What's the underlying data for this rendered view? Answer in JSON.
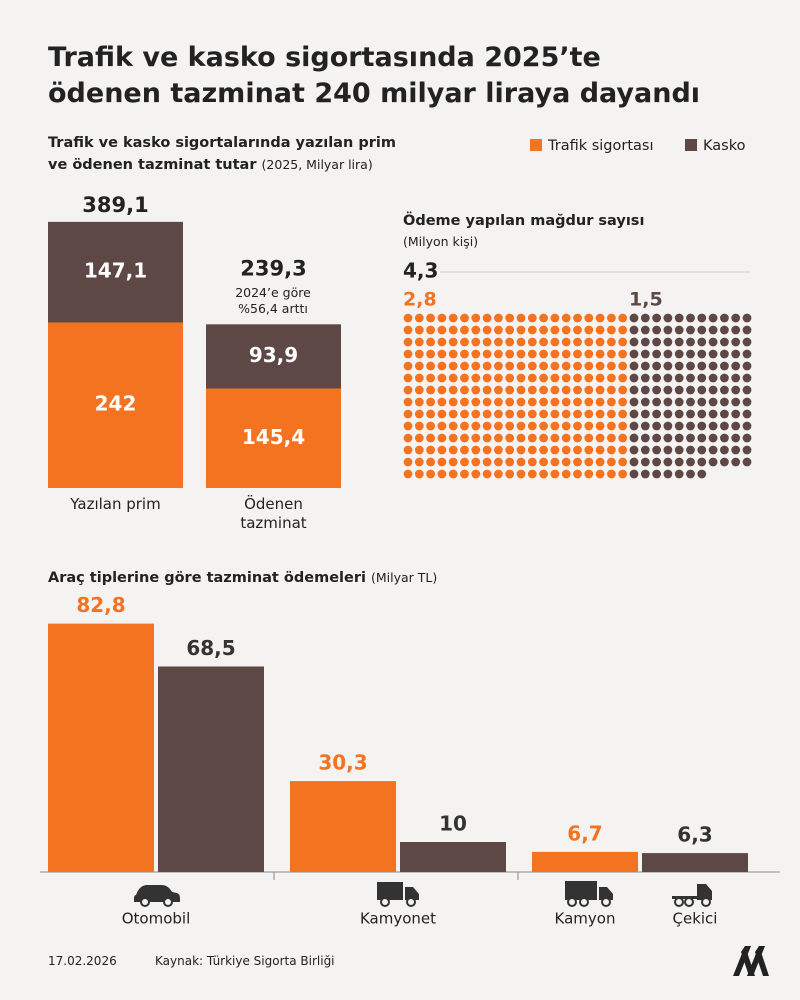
{
  "title": "Trafik ve kasko sigortasında 2025’te ödenen tazminat 240 milyar liraya dayandı",
  "date": "17.02.2026",
  "source": "Kaynak: Türkiye Sigorta Birliği",
  "chart_data": [
    {
      "type": "stacked_bar",
      "title": "Trafik ve kasko sigortalarında yazılan prim ve ödenen tazminat tutar",
      "subtitle": "(2025, Milyar lira)",
      "categories": [
        "Yazılan prim",
        "Ödenen tazminat"
      ],
      "series": [
        {
          "name": "Trafik sigortası",
          "color": "#f47321",
          "values": [
            242,
            145.4
          ],
          "value_labels": [
            "242",
            "145,4"
          ]
        },
        {
          "name": "Kasko",
          "color": "#5d4845",
          "values": [
            147.1,
            93.9
          ],
          "value_labels": [
            "147,1",
            "93,9"
          ]
        }
      ],
      "totals": [
        389.1,
        239.3
      ],
      "total_labels": [
        "389,1",
        "239,3"
      ],
      "annotation": "2024’e göre %56,4 arttı",
      "ylim": [
        0,
        400
      ],
      "legend": "top-right"
    },
    {
      "type": "dot",
      "title": "Ödeme yapılan mağdur sayısı",
      "subtitle": "(Milyon kişi)",
      "total": 4.3,
      "total_label": "4,3",
      "series": [
        {
          "color": "#f47321",
          "values": [
            2.8
          ],
          "value_labels": [
            "2,8"
          ]
        },
        {
          "color": "#5d4845",
          "values": [
            1.5
          ],
          "value_labels": [
            "1,5"
          ]
        }
      ]
    },
    {
      "type": "bar",
      "title": "Araç tiplerine göre tazminat ödemeleri",
      "subtitle": "(Milyar TL)",
      "categories": [
        "Otomobil",
        "Kamyonet",
        "Kamyon",
        "Çekici"
      ],
      "series": [
        {
          "color": "#f47321",
          "values": [
            82.8,
            30.3,
            6.7,
            null
          ],
          "value_labels": [
            "82,8",
            "30,3",
            "6,7",
            null
          ]
        },
        {
          "color": "#5d4845",
          "values": [
            68.5,
            10,
            null,
            6.3
          ],
          "value_labels": [
            "68,5",
            "10",
            null,
            "6,3"
          ]
        }
      ],
      "ylim": [
        0,
        85
      ]
    }
  ]
}
